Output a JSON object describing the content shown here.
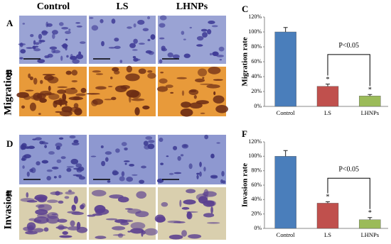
{
  "figure": {
    "column_labels": [
      "Control",
      "LS",
      "LHNPs"
    ],
    "row_labels": [
      "Migration",
      "Invasion"
    ],
    "panel_letters": [
      "A",
      "B",
      "D",
      "E"
    ]
  },
  "chart_data": [
    {
      "type": "bar",
      "letter": "C",
      "y_label": "Migration rate",
      "categories": [
        "Control",
        "LS",
        "LHNPs"
      ],
      "values": [
        100,
        27,
        14
      ],
      "errors": [
        6,
        3,
        2
      ],
      "colors": [
        "#4a7ebb",
        "#c0504d",
        "#9bbb59"
      ],
      "markers": [
        null,
        "*",
        "*"
      ],
      "annotation": "P<0.05",
      "ylim": [
        0,
        120
      ],
      "yticks": [
        {
          "value": 0,
          "label": "0%"
        },
        {
          "value": 20,
          "label": "20%"
        },
        {
          "value": 40,
          "label": "40%"
        },
        {
          "value": 60,
          "label": "60%"
        },
        {
          "value": 80,
          "label": "80%"
        },
        {
          "value": 100,
          "label": "100%"
        },
        {
          "value": 120,
          "label": "120%"
        }
      ]
    },
    {
      "type": "bar",
      "letter": "F",
      "y_label": "Invasion rate",
      "categories": [
        "Control",
        "LS",
        "LHNPs"
      ],
      "values": [
        100,
        35,
        12
      ],
      "errors": [
        8,
        2,
        3
      ],
      "colors": [
        "#4a7ebb",
        "#c0504d",
        "#9bbb59"
      ],
      "markers": [
        null,
        "*",
        "*"
      ],
      "annotation": "P<0.05",
      "ylim": [
        0,
        120
      ],
      "yticks": [
        {
          "value": 0,
          "label": "0%"
        },
        {
          "value": 20,
          "label": "20%"
        },
        {
          "value": 40,
          "label": "40%"
        },
        {
          "value": 60,
          "label": "60%"
        },
        {
          "value": 80,
          "label": "80%"
        },
        {
          "value": 100,
          "label": "100%"
        },
        {
          "value": 120,
          "label": "120%"
        }
      ]
    }
  ]
}
